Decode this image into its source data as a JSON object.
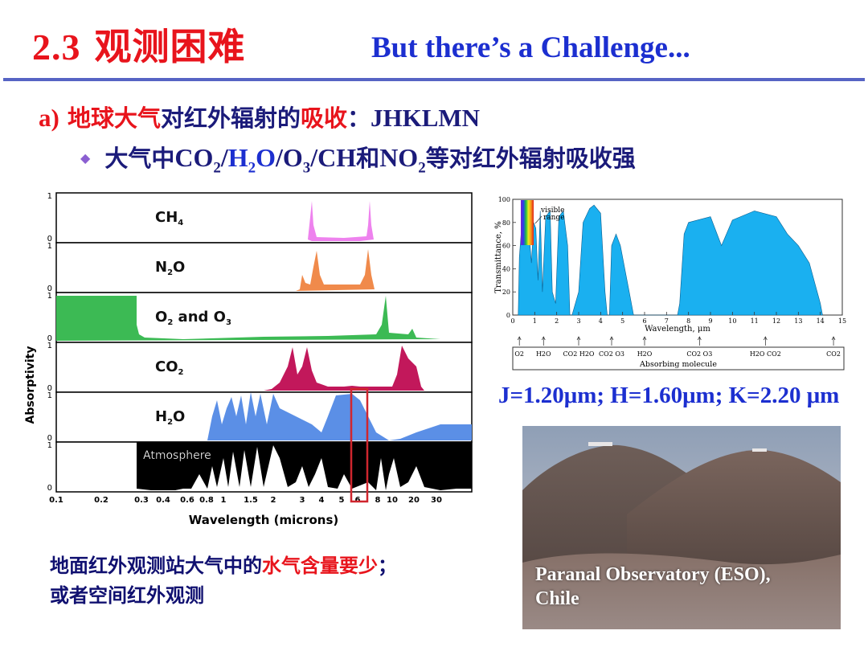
{
  "header": {
    "title_number": "2.3",
    "title_cn": "观测困难",
    "title_en": "But there’s a Challenge..."
  },
  "point_a": {
    "prefix": "a)",
    "red1": "地球大气",
    "mid": "对红外辐射的",
    "red2": "吸收",
    "colon": "：",
    "bands": "JHKLMN"
  },
  "bullet": {
    "pre": "大气中",
    "co2": "CO",
    "co2_sub": "2",
    "slash1": "/",
    "h2o_h": "H",
    "h2o_sub": "2",
    "h2o_o": "O",
    "slash2": "/",
    "o3": "O",
    "o3_sub": "3",
    "slash3": "/",
    "ch": "CH",
    "and": "和",
    "no2": "NO",
    "no2_sub": "2",
    "post": "等对红外辐射吸收强"
  },
  "spectrum_chart": {
    "ylabel": "Absorptivity",
    "xlabel": "Wavelength (microns)",
    "x_ticks": [
      "0.1",
      "0.2",
      "0.3",
      "0.4",
      "0.6",
      "0.8",
      "1",
      "1.5",
      "2",
      "3",
      "4",
      "5",
      "6",
      "8",
      "10",
      "20",
      "30"
    ],
    "y_ticks": [
      "1",
      "0"
    ],
    "panels": [
      {
        "label": "CH",
        "sub": "4",
        "color": "#ee82ee"
      },
      {
        "label": "N",
        "sub": "2",
        "label2": "O",
        "color": "#f08a4b"
      },
      {
        "label": "O",
        "sub": "2",
        "label2": " and O",
        "sub2": "3",
        "color": "#3cba54"
      },
      {
        "label": "CO",
        "sub": "2",
        "color": "#c2185b"
      },
      {
        "label": "H",
        "sub": "2",
        "label2": "O",
        "color": "#5b8fe6"
      },
      {
        "label": "Atmosphere",
        "color": "#000000"
      }
    ]
  },
  "transmittance_chart": {
    "ylabel": "Transmittance, %",
    "xlabel": "Wavelength, μm",
    "visible_label_1": "visible",
    "visible_label_2": "range",
    "y_ticks": [
      "100",
      "80",
      "60",
      "40",
      "20",
      "0"
    ],
    "x_ticks": [
      "0",
      "1",
      "2",
      "3",
      "4",
      "5",
      "6",
      "7",
      "8",
      "9",
      "10",
      "11",
      "12",
      "13",
      "14",
      "15"
    ],
    "fill_color": "#1ab0f0",
    "molecules_caption": "Absorbing molecule",
    "molecules": [
      "O2",
      "H2O",
      "CO2 H2O",
      "CO2 O3",
      "H2O",
      "CO2 O3",
      "H2O CO2",
      "CO2"
    ]
  },
  "bands_text": "J=1.20μm; H=1.60μm; K=2.20 μm",
  "photo": {
    "caption_1": "Paranal Observatory (ESO),",
    "caption_2": "Chile"
  },
  "footnote": {
    "line1_a": "地面红外观测站大气中的",
    "line1_red": "水气含量要少",
    "line1_end": "；",
    "line2": "或者空间红外观测"
  }
}
